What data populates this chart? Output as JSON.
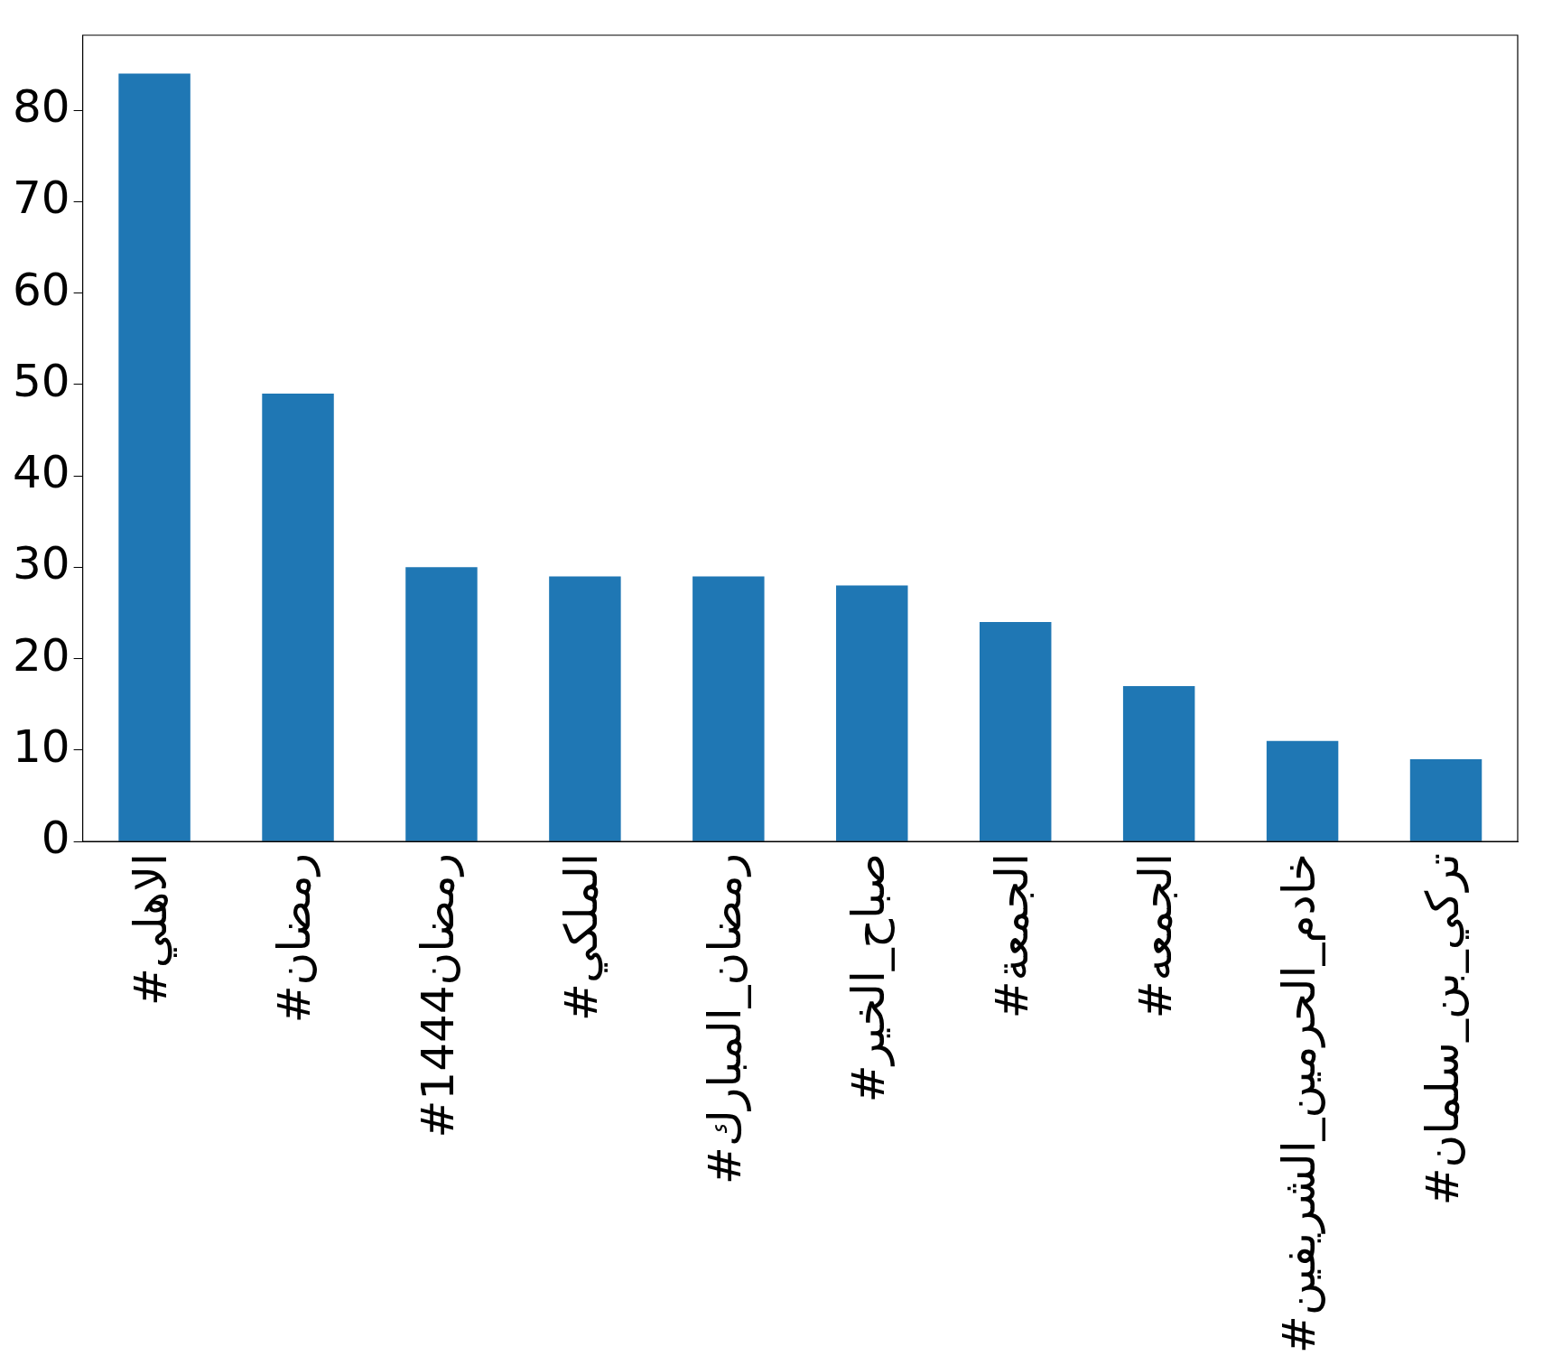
{
  "chart_data": {
    "type": "bar",
    "categories": [
      "#الاهلي",
      "#رمضان",
      "#رمضان1444",
      "#الملكي",
      "#رمضان_المبارك",
      "#صباح_الخير",
      "#الجمعة",
      "#الجمعه",
      "#خادم_الحرمين_الشريفين",
      "#تركي_بن_سلمان"
    ],
    "values": [
      84,
      49,
      30,
      29,
      29,
      28,
      24,
      17,
      11,
      9
    ],
    "color": "#1f77b4",
    "ylim": [
      0,
      88.2
    ],
    "yticks": [
      0,
      10,
      20,
      30,
      40,
      50,
      60,
      70,
      80
    ],
    "grid": false
  }
}
